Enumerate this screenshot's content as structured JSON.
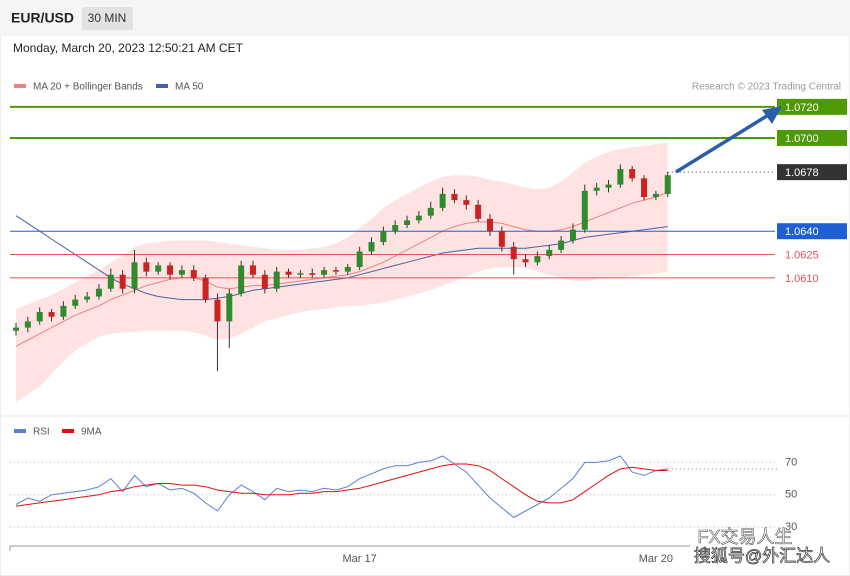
{
  "header": {
    "symbol": "EUR/USD",
    "timeframe": "30 MIN",
    "date": "Monday, March 20, 2023 12:50:21 AM CET",
    "credit": "Research © 2023 Trading Central"
  },
  "watermark": {
    "line1": "FX交易人生",
    "line2": "搜狐号@外汇达人"
  },
  "chart_data": [
    {
      "type": "candlestick",
      "categories": [
        null,
        null,
        null,
        null,
        null,
        null,
        null,
        null,
        null,
        null,
        null,
        null,
        null,
        null,
        null,
        null,
        null,
        null,
        null,
        null,
        null,
        null,
        null,
        null,
        null,
        null,
        null,
        null,
        null,
        "Mar 17",
        null,
        null,
        null,
        null,
        null,
        null,
        null,
        null,
        null,
        null,
        null,
        null,
        null,
        null,
        null,
        null,
        null,
        null,
        null,
        null,
        null,
        null,
        null,
        null,
        "Mar 20",
        null
      ],
      "ylim": [
        1.0525,
        1.0763
      ],
      "up_color": "#2e8b2e",
      "down_color": "#cc2222",
      "open": [
        1.0576,
        1.0578,
        1.0582,
        1.0588,
        1.0585,
        1.0592,
        1.0596,
        1.0598,
        1.0603,
        1.0612,
        1.0603,
        1.062,
        1.0614,
        1.0618,
        1.0612,
        1.0615,
        1.061,
        1.0596,
        1.0582,
        1.06,
        1.0618,
        1.0612,
        1.0603,
        1.0614,
        1.0612,
        1.0613,
        1.0612,
        1.0615,
        1.0614,
        1.0617,
        1.0627,
        1.0633,
        1.064,
        1.0644,
        1.0647,
        1.065,
        1.0655,
        1.0664,
        1.066,
        1.0657,
        1.0648,
        1.064,
        1.063,
        1.0622,
        1.062,
        1.0624,
        1.0628,
        1.0634,
        1.0641,
        1.0666,
        1.0668,
        1.067,
        1.068,
        1.0674,
        1.0662,
        1.0664
      ],
      "high": [
        1.0581,
        1.0585,
        1.0591,
        1.059,
        1.0595,
        1.0599,
        1.0601,
        1.0606,
        1.0616,
        1.0615,
        1.0628,
        1.0623,
        1.062,
        1.062,
        1.0618,
        1.0618,
        1.0612,
        1.06,
        1.0603,
        1.0621,
        1.0621,
        1.0615,
        1.0617,
        1.0616,
        1.0615,
        1.0616,
        1.0617,
        1.0617,
        1.0619,
        1.063,
        1.0636,
        1.0643,
        1.0647,
        1.065,
        1.0653,
        1.0659,
        1.0668,
        1.0667,
        1.0663,
        1.066,
        1.0651,
        1.0643,
        1.0633,
        1.0625,
        1.0627,
        1.0631,
        1.0637,
        1.0645,
        1.067,
        1.0671,
        1.0673,
        1.0683,
        1.0682,
        1.0676,
        1.0666,
        1.0678
      ],
      "low": [
        1.0573,
        1.0575,
        1.058,
        1.0582,
        1.0583,
        1.059,
        1.0594,
        1.0596,
        1.0601,
        1.06,
        1.06,
        1.0611,
        1.0612,
        1.0609,
        1.061,
        1.0608,
        1.0594,
        1.055,
        1.0565,
        1.0598,
        1.061,
        1.06,
        1.0601,
        1.061,
        1.061,
        1.061,
        1.061,
        1.0612,
        1.0612,
        1.0615,
        1.0625,
        1.0631,
        1.0638,
        1.0642,
        1.0645,
        1.0648,
        1.0653,
        1.0658,
        1.0654,
        1.0646,
        1.0637,
        1.0627,
        1.0612,
        1.0617,
        1.0618,
        1.0622,
        1.0626,
        1.0632,
        1.0639,
        1.0663,
        1.0665,
        1.0668,
        1.0672,
        1.066,
        1.066,
        1.0662
      ],
      "close": [
        1.0578,
        1.0582,
        1.0588,
        1.0585,
        1.0592,
        1.0596,
        1.0598,
        1.0603,
        1.0612,
        1.0603,
        1.062,
        1.0614,
        1.0618,
        1.0612,
        1.0615,
        1.061,
        1.0596,
        1.0582,
        1.06,
        1.0618,
        1.0612,
        1.0603,
        1.0614,
        1.0612,
        1.0613,
        1.0612,
        1.0615,
        1.0614,
        1.0617,
        1.0627,
        1.0633,
        1.064,
        1.0644,
        1.0647,
        1.065,
        1.0655,
        1.0664,
        1.066,
        1.0657,
        1.0648,
        1.064,
        1.063,
        1.0622,
        1.062,
        1.0624,
        1.0628,
        1.0634,
        1.0641,
        1.0666,
        1.0668,
        1.067,
        1.068,
        1.0674,
        1.0662,
        1.0664,
        1.0676
      ],
      "bands": {
        "name": "MA 20 + Bollinger Bands",
        "color": "#f08080",
        "fill": "#ffe3e3",
        "mid": [
          1.0566,
          1.057,
          1.0574,
          1.0578,
          1.0582,
          1.0586,
          1.0589,
          1.0592,
          1.0596,
          1.0599,
          1.0602,
          1.0605,
          1.0607,
          1.0609,
          1.061,
          1.061,
          1.0608,
          1.0604,
          1.0603,
          1.0604,
          1.0605,
          1.0605,
          1.0606,
          1.0607,
          1.0608,
          1.0609,
          1.061,
          1.0611,
          1.0612,
          1.0614,
          1.0617,
          1.062,
          1.0624,
          1.0628,
          1.0632,
          1.0636,
          1.064,
          1.0643,
          1.0645,
          1.0646,
          1.0646,
          1.0645,
          1.0643,
          1.0641,
          1.064,
          1.064,
          1.0641,
          1.0643,
          1.0646,
          1.0649,
          1.0652,
          1.0655,
          1.0658,
          1.066,
          1.0662,
          1.0665
        ],
        "upper": [
          1.059,
          1.0593,
          1.0596,
          1.0599,
          1.0603,
          1.0607,
          1.0611,
          1.0615,
          1.062,
          1.0624,
          1.063,
          1.0632,
          1.0633,
          1.0634,
          1.0634,
          1.0634,
          1.0634,
          1.0633,
          1.0632,
          1.0631,
          1.063,
          1.0629,
          1.0628,
          1.0628,
          1.0628,
          1.0629,
          1.063,
          1.0632,
          1.0636,
          1.0642,
          1.0648,
          1.0655,
          1.066,
          1.0664,
          1.0668,
          1.0672,
          1.0675,
          1.0676,
          1.0676,
          1.0675,
          1.0673,
          1.0672,
          1.067,
          1.0668,
          1.0667,
          1.0668,
          1.0672,
          1.0678,
          1.0684,
          1.0688,
          1.0691,
          1.0693,
          1.0694,
          1.0695,
          1.0696,
          1.0697
        ],
        "lower": [
          1.053,
          1.0535,
          1.054,
          1.0548,
          1.0556,
          1.0563,
          1.0568,
          1.0572,
          1.0574,
          1.0575,
          1.0575,
          1.0576,
          1.0576,
          1.0576,
          1.0576,
          1.0575,
          1.0573,
          1.057,
          1.0571,
          1.0574,
          1.0578,
          1.0582,
          1.0584,
          1.0586,
          1.0588,
          1.0589,
          1.059,
          1.0591,
          1.0592,
          1.0592,
          1.0593,
          1.0594,
          1.0596,
          1.0598,
          1.06,
          1.0602,
          1.0605,
          1.0608,
          1.0611,
          1.0614,
          1.0616,
          1.0617,
          1.0617,
          1.0616,
          1.0614,
          1.0612,
          1.061,
          1.0608,
          1.0608,
          1.0609,
          1.061,
          1.061,
          1.0611,
          1.0612,
          1.0613,
          1.0614
        ]
      },
      "ma50": {
        "name": "MA 50",
        "color": "#4a5fa8",
        "values": [
          1.065,
          1.0645,
          1.064,
          1.0635,
          1.063,
          1.0625,
          1.062,
          1.0615,
          1.061,
          1.0606,
          1.0603,
          1.06,
          1.0598,
          1.0597,
          1.0596,
          1.0596,
          1.0596,
          1.0597,
          1.0598,
          1.06,
          1.0602,
          1.0603,
          1.0604,
          1.0605,
          1.0606,
          1.0607,
          1.0608,
          1.0609,
          1.061,
          1.0612,
          1.0614,
          1.0616,
          1.0618,
          1.062,
          1.0622,
          1.0624,
          1.0626,
          1.0627,
          1.0628,
          1.0629,
          1.0629,
          1.0629,
          1.0629,
          1.0629,
          1.063,
          1.0631,
          1.0632,
          1.0634,
          1.0636,
          1.0637,
          1.0638,
          1.0639,
          1.064,
          1.0641,
          1.0642,
          1.0643
        ]
      },
      "levels": [
        {
          "value": 1.072,
          "label": "1.0720",
          "color": "#4e9a06",
          "style": "solid",
          "box": true
        },
        {
          "value": 1.07,
          "label": "1.0700",
          "color": "#4e9a06",
          "style": "solid",
          "box": true
        },
        {
          "value": 1.0678,
          "label": "1.0678",
          "color": "#333333",
          "style": "dotted",
          "box": true
        },
        {
          "value": 1.064,
          "label": "1.0640",
          "color": "#1f5fd6",
          "style": "solid",
          "box": true
        },
        {
          "value": 1.0625,
          "label": "1.0625",
          "color": "#e05555",
          "style": "solid",
          "box": false
        },
        {
          "value": 1.061,
          "label": "1.0610",
          "color": "#e05555",
          "style": "solid",
          "box": false
        }
      ]
    },
    {
      "type": "line",
      "ylim": [
        19,
        82
      ],
      "yticks": [
        30,
        50,
        70
      ],
      "grid": true,
      "series": [
        {
          "name": "RSI",
          "color": "#5b7fd6",
          "values": [
            44,
            48,
            46,
            50,
            51,
            52,
            53,
            55,
            60,
            52,
            62,
            55,
            57,
            53,
            54,
            51,
            45,
            40,
            50,
            56,
            52,
            47,
            54,
            52,
            53,
            52,
            54,
            53,
            55,
            60,
            63,
            66,
            68,
            68,
            70,
            71,
            74,
            69,
            64,
            56,
            48,
            42,
            36,
            40,
            44,
            48,
            54,
            60,
            70,
            70,
            71,
            74,
            64,
            62,
            65,
            66
          ]
        },
        {
          "name": "9MA",
          "color": "#dd1111",
          "values": [
            43,
            44,
            45,
            46,
            47,
            48,
            49,
            50,
            52,
            53,
            55,
            56,
            57,
            57,
            56,
            56,
            55,
            53,
            52,
            51,
            51,
            50,
            50,
            50,
            51,
            51,
            52,
            52,
            53,
            54,
            56,
            58,
            60,
            62,
            64,
            66,
            68,
            69,
            69,
            68,
            65,
            60,
            55,
            50,
            46,
            45,
            45,
            47,
            52,
            57,
            62,
            66,
            67,
            66,
            65,
            65
          ]
        }
      ]
    }
  ]
}
